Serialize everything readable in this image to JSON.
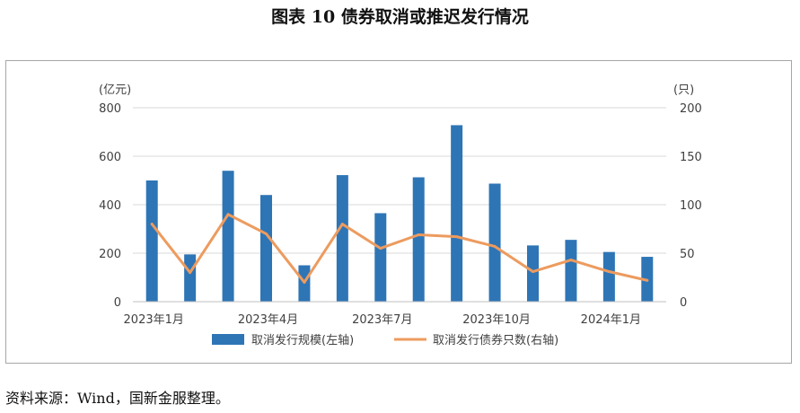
{
  "title": "图表 10 债券取消或推迟发行情况",
  "source_note": "资料来源：Wind，国新金服整理。",
  "colors": {
    "bar": "#2e75b6",
    "line": "#ed9b5e",
    "grid": "#d9d9d9",
    "axis": "#bfbfbf",
    "text": "#404040"
  },
  "chart_data": {
    "type": "bar",
    "left_unit": "(亿元)",
    "right_unit": "(只)",
    "categories": [
      "2023年1月",
      "2023年2月",
      "2023年3月",
      "2023年4月",
      "2023年5月",
      "2023年6月",
      "2023年7月",
      "2023年8月",
      "2023年9月",
      "2023年10月",
      "2023年11月",
      "2023年12月",
      "2024年1月",
      "2024年2月"
    ],
    "x_tick_labels": [
      "2023年1月",
      "",
      "",
      "2023年4月",
      "",
      "",
      "2023年7月",
      "",
      "",
      "2023年10月",
      "",
      "",
      "2024年1月",
      ""
    ],
    "y_left_ticks": [
      0,
      200,
      400,
      600,
      800
    ],
    "y_right_ticks": [
      0,
      50,
      100,
      150,
      200
    ],
    "ylim_left": [
      0,
      800
    ],
    "ylim_right": [
      0,
      200
    ],
    "grid": true,
    "legend_position": "bottom",
    "series": [
      {
        "name": "取消发行规模(左轴)",
        "type": "bar",
        "axis": "left",
        "values": [
          500,
          195,
          540,
          440,
          150,
          522,
          365,
          513,
          728,
          487,
          232,
          255,
          205,
          185
        ]
      },
      {
        "name": "取消发行债券只数(右轴)",
        "type": "line",
        "axis": "right",
        "values": [
          80,
          30,
          90,
          70,
          20,
          80,
          55,
          69,
          67,
          57,
          31,
          43,
          31,
          22
        ]
      }
    ]
  }
}
